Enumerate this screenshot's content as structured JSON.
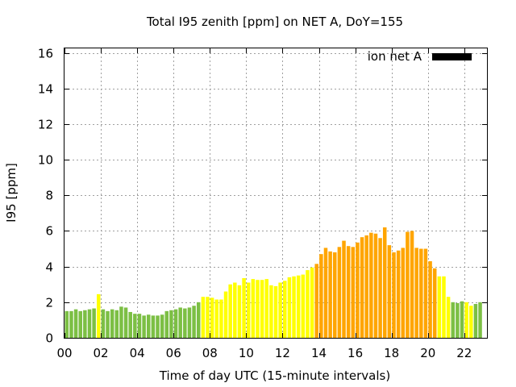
{
  "chart_data": {
    "type": "bar",
    "title": "Total I95 zenith [ppm] on NET A, DoY=155",
    "xlabel": "Time of day UTC (15-minute intervals)",
    "ylabel": "I95 [ppm]",
    "xlim": [
      0,
      23.25
    ],
    "ylim": [
      0,
      16.25
    ],
    "bin_hours": 0.25,
    "x_ticks": [
      {
        "v": 0,
        "label": "00"
      },
      {
        "v": 2,
        "label": "02"
      },
      {
        "v": 4,
        "label": "04"
      },
      {
        "v": 6,
        "label": "06"
      },
      {
        "v": 8,
        "label": "08"
      },
      {
        "v": 10,
        "label": "10"
      },
      {
        "v": 12,
        "label": "12"
      },
      {
        "v": 14,
        "label": "14"
      },
      {
        "v": 16,
        "label": "16"
      },
      {
        "v": 18,
        "label": "18"
      },
      {
        "v": 20,
        "label": "20"
      },
      {
        "v": 22,
        "label": "22"
      }
    ],
    "y_ticks": [
      {
        "v": 0,
        "label": "0"
      },
      {
        "v": 2,
        "label": "2"
      },
      {
        "v": 4,
        "label": "4"
      },
      {
        "v": 6,
        "label": "6"
      },
      {
        "v": 8,
        "label": "8"
      },
      {
        "v": 10,
        "label": "10"
      },
      {
        "v": 12,
        "label": "12"
      },
      {
        "v": 14,
        "label": "14"
      },
      {
        "v": 16,
        "label": "16"
      }
    ],
    "grid": true,
    "legend": {
      "label": "ion net A",
      "swatch_color": "#000000",
      "position": "top-right"
    },
    "color_scale": {
      "green": "#7cbf44",
      "yellow": "#ffff00",
      "orange": "#ffa500"
    },
    "series": [
      {
        "x": [
          0,
          0.25,
          0.5,
          0.75,
          1,
          1.25,
          1.5,
          1.75,
          2,
          2.25,
          2.5,
          2.75,
          3,
          3.25,
          3.5,
          3.75,
          4,
          4.25,
          4.5,
          4.75,
          5,
          5.25,
          5.5,
          5.75,
          6,
          6.25,
          6.5,
          6.75,
          7,
          7.25,
          7.5,
          7.75,
          8,
          8.25,
          8.5,
          8.75,
          9,
          9.25,
          9.5,
          9.75,
          10,
          10.25,
          10.5,
          10.75,
          11,
          11.25,
          11.5,
          11.75,
          12,
          12.25,
          12.5,
          12.75,
          13,
          13.25,
          13.5,
          13.75,
          14,
          14.25,
          14.5,
          14.75,
          15,
          15.25,
          15.5,
          15.75,
          16,
          16.25,
          16.5,
          16.75,
          17,
          17.25,
          17.5,
          17.75,
          18,
          18.25,
          18.5,
          18.75,
          19,
          19.25,
          19.5,
          19.75,
          20,
          20.25,
          20.5,
          20.75,
          21,
          21.25,
          21.5,
          21.75,
          22,
          22.25,
          22.5,
          22.75
        ],
        "values": [
          1.5,
          1.5,
          1.6,
          1.5,
          1.55,
          1.6,
          1.65,
          2.45,
          1.6,
          1.5,
          1.6,
          1.55,
          1.75,
          1.7,
          1.45,
          1.35,
          1.35,
          1.25,
          1.3,
          1.25,
          1.25,
          1.3,
          1.5,
          1.55,
          1.6,
          1.7,
          1.65,
          1.7,
          1.8,
          2.0,
          2.3,
          2.3,
          2.25,
          2.15,
          2.15,
          2.6,
          3.0,
          3.1,
          2.95,
          3.35,
          3.1,
          3.3,
          3.25,
          3.25,
          3.3,
          2.95,
          2.9,
          3.1,
          3.2,
          3.4,
          3.45,
          3.5,
          3.55,
          3.8,
          3.95,
          4.15,
          4.7,
          5.05,
          4.85,
          4.8,
          5.1,
          5.45,
          5.15,
          5.1,
          5.35,
          5.65,
          5.75,
          5.9,
          5.85,
          5.6,
          6.2,
          5.2,
          4.8,
          4.9,
          5.05,
          5.95,
          6.0,
          5.05,
          5.0,
          5.0,
          4.3,
          3.9,
          3.45,
          3.45,
          2.3,
          2.0,
          1.95,
          2.05,
          2.0,
          1.8,
          1.9,
          2.0
        ],
        "colors": [
          "green",
          "green",
          "green",
          "green",
          "green",
          "green",
          "green",
          "yellow",
          "green",
          "green",
          "green",
          "green",
          "green",
          "green",
          "green",
          "green",
          "green",
          "green",
          "green",
          "green",
          "green",
          "green",
          "green",
          "green",
          "green",
          "green",
          "green",
          "green",
          "green",
          "green",
          "yellow",
          "yellow",
          "yellow",
          "yellow",
          "yellow",
          "yellow",
          "yellow",
          "yellow",
          "yellow",
          "yellow",
          "yellow",
          "yellow",
          "yellow",
          "yellow",
          "yellow",
          "yellow",
          "yellow",
          "yellow",
          "yellow",
          "yellow",
          "yellow",
          "yellow",
          "yellow",
          "yellow",
          "yellow",
          "orange",
          "orange",
          "orange",
          "orange",
          "orange",
          "orange",
          "orange",
          "orange",
          "orange",
          "orange",
          "orange",
          "orange",
          "orange",
          "orange",
          "orange",
          "orange",
          "orange",
          "orange",
          "orange",
          "orange",
          "orange",
          "orange",
          "orange",
          "orange",
          "orange",
          "orange",
          "orange",
          "yellow",
          "yellow",
          "yellow",
          "green",
          "green",
          "green",
          "yellow",
          "yellow",
          "green",
          "green"
        ]
      }
    ]
  }
}
